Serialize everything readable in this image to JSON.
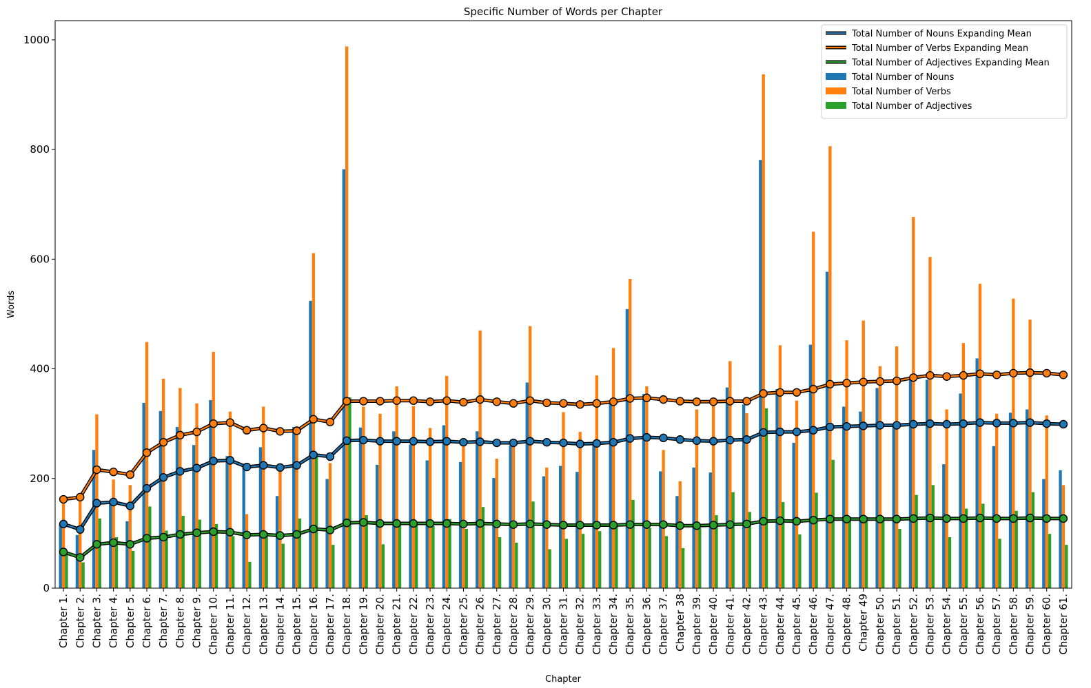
{
  "chart_data": {
    "type": "bar",
    "title": "Specific Number of Words per Chapter",
    "xlabel": "Chapter",
    "ylabel": "Words",
    "ylim": [
      0,
      1035
    ],
    "yticks": [
      0,
      200,
      400,
      600,
      800,
      1000
    ],
    "grid": false,
    "legend_position": "top-right",
    "categories": [
      "Chapter 1.",
      "Chapter 2.",
      "Chapter 3.",
      "Chapter 4.",
      "Chapter 5.",
      "Chapter 6.",
      "Chapter 7.",
      "Chapter 8.",
      "Chapter 9.",
      "Chapter 10.",
      "Chapter 11.",
      "Chapter 12.",
      "Chapter 13.",
      "Chapter 14.",
      "Chapter 15.",
      "Chapter 16.",
      "Chapter 17.",
      "Chapter 18.",
      "Chapter 19.",
      "Chapter 20.",
      "Chapter 21.",
      "Chapter 22.",
      "Chapter 23.",
      "Chapter 24.",
      "Chapter 25.",
      "Chapter 26.",
      "Chapter 27.",
      "Chapter 28.",
      "Chapter 29.",
      "Chapter 30.",
      "Chapter 31.",
      "Chapter 32.",
      "Chapter 33.",
      "Chapter 34.",
      "Chapter 35.",
      "Chapter 36.",
      "Chapter 37.",
      "Chapter 38",
      "Chapter 39.",
      "Chapter 40.",
      "Chapter 41.",
      "Chapter 42.",
      "Chapter 43.",
      "Chapter 44.",
      "Chapter 45.",
      "Chapter 46.",
      "Chapter 47.",
      "Chapter 48.",
      "Chapter 49",
      "Chapter 50.",
      "Chapter 51.",
      "Chapter 52.",
      "Chapter 53.",
      "Chapter 54.",
      "Chapter 55.",
      "Chapter 56.",
      "Chapter 57.",
      "Chapter 58.",
      "Chapter 59.",
      "Chapter 60.",
      "Chapter 61."
    ],
    "bar_series": [
      {
        "name": "Total Number of Nouns",
        "color": "#1f77b4",
        "values": [
          117,
          97,
          252,
          160,
          122,
          338,
          323,
          294,
          261,
          343,
          241,
          222,
          257,
          168,
          294,
          524,
          199,
          764,
          293,
          225,
          286,
          262,
          233,
          297,
          230,
          286,
          201,
          260,
          375,
          204,
          223,
          212,
          264,
          339,
          509,
          354,
          213,
          168,
          220,
          211,
          366,
          335,
          781,
          363,
          265,
          444,
          577,
          331,
          322,
          365,
          299,
          386,
          380,
          226,
          355,
          419,
          259,
          320,
          326,
          199,
          215
        ]
      },
      {
        "name": "Total Number of Verbs",
        "color": "#ff7f0e",
        "values": [
          162,
          170,
          317,
          198,
          188,
          449,
          382,
          365,
          337,
          431,
          322,
          135,
          331,
          219,
          295,
          611,
          228,
          988,
          331,
          318,
          368,
          332,
          292,
          387,
          258,
          470,
          236,
          260,
          478,
          220,
          321,
          285,
          388,
          438,
          564,
          368,
          252,
          195,
          326,
          341,
          414,
          319,
          937,
          443,
          342,
          650,
          806,
          452,
          488,
          405,
          441,
          677,
          604,
          326,
          447,
          555,
          318,
          528,
          490,
          315,
          188
        ]
      },
      {
        "name": "Total Number of Adjectives",
        "color": "#2ca02c",
        "values": [
          66,
          47,
          127,
          93,
          68,
          149,
          105,
          132,
          125,
          117,
          95,
          48,
          102,
          81,
          127,
          242,
          79,
          348,
          133,
          80,
          118,
          118,
          113,
          126,
          108,
          148,
          93,
          83,
          158,
          71,
          90,
          99,
          104,
          115,
          161,
          110,
          95,
          73,
          110,
          133,
          175,
          139,
          328,
          157,
          98,
          174,
          234,
          130,
          130,
          125,
          108,
          170,
          188,
          93,
          145,
          154,
          90,
          141,
          175,
          99,
          79
        ]
      }
    ],
    "line_series": [
      {
        "name": "Total Number of Nouns Expanding Mean",
        "color": "#1f77b4",
        "values": [
          117,
          107,
          155,
          157,
          150,
          182,
          202,
          213,
          219,
          232,
          233,
          221,
          224,
          220,
          224,
          243,
          240,
          269,
          270,
          268,
          268,
          268,
          267,
          268,
          266,
          267,
          265,
          265,
          268,
          266,
          265,
          263,
          264,
          266,
          273,
          275,
          274,
          271,
          269,
          268,
          270,
          271,
          284,
          285,
          285,
          288,
          294,
          295,
          296,
          297,
          297,
          299,
          300,
          299,
          300,
          302,
          301,
          301,
          302,
          300,
          299
        ]
      },
      {
        "name": "Total Number of Verbs Expanding Mean",
        "color": "#ff7f0e",
        "values": [
          162,
          166,
          216,
          212,
          207,
          247,
          266,
          279,
          285,
          300,
          302,
          288,
          292,
          286,
          287,
          308,
          303,
          341,
          341,
          341,
          342,
          342,
          340,
          342,
          339,
          344,
          340,
          337,
          342,
          338,
          337,
          335,
          337,
          340,
          346,
          347,
          344,
          341,
          340,
          340,
          341,
          341,
          355,
          357,
          357,
          363,
          372,
          374,
          376,
          377,
          378,
          384,
          388,
          386,
          388,
          391,
          389,
          392,
          393,
          392,
          389
        ]
      },
      {
        "name": "Total Number of Adjectives Expanding Mean",
        "color": "#2ca02c",
        "values": [
          66,
          56,
          80,
          83,
          80,
          91,
          93,
          98,
          101,
          103,
          102,
          97,
          98,
          96,
          98,
          108,
          106,
          119,
          120,
          118,
          118,
          118,
          118,
          118,
          117,
          118,
          117,
          116,
          117,
          116,
          115,
          115,
          115,
          115,
          116,
          116,
          116,
          114,
          114,
          115,
          116,
          117,
          122,
          123,
          122,
          124,
          126,
          126,
          126,
          126,
          126,
          127,
          128,
          127,
          127,
          128,
          127,
          127,
          128,
          127,
          127
        ]
      }
    ],
    "legend": [
      {
        "kind": "line",
        "label": "Total Number of Nouns Expanding Mean",
        "color": "#1f77b4"
      },
      {
        "kind": "line",
        "label": "Total Number of Verbs Expanding Mean",
        "color": "#ff7f0e"
      },
      {
        "kind": "line",
        "label": "Total Number of Adjectives Expanding Mean",
        "color": "#2ca02c"
      },
      {
        "kind": "bar",
        "label": "Total Number of Nouns",
        "color": "#1f77b4"
      },
      {
        "kind": "bar",
        "label": "Total Number of Verbs",
        "color": "#ff7f0e"
      },
      {
        "kind": "bar",
        "label": "Total Number of Adjectives",
        "color": "#2ca02c"
      }
    ]
  }
}
